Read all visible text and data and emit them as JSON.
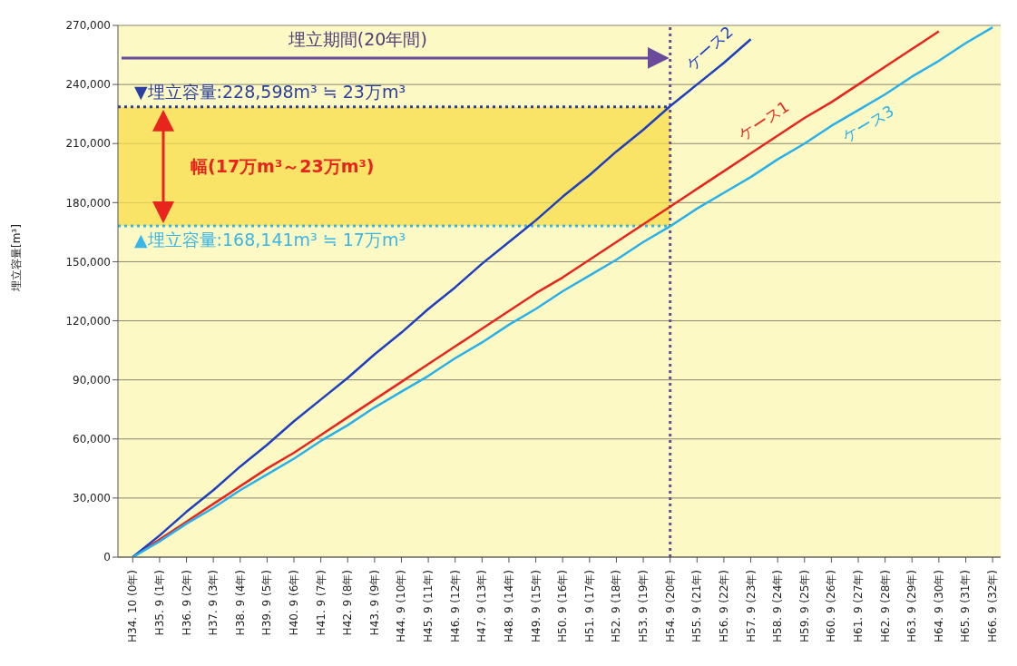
{
  "chart_data": {
    "type": "line",
    "ylabel": "埋立容量[m³]",
    "categories": [
      "H34. 10 (0年)",
      "H35. 9 (1年)",
      "H36. 9 (2年)",
      "H37. 9 (3年)",
      "H38. 9 (4年)",
      "H39. 9 (5年)",
      "H40. 9 (6年)",
      "H41. 9 (7年)",
      "H42. 9 (8年)",
      "H43. 9 (9年)",
      "H44. 9 (10年)",
      "H45. 9 (11年)",
      "H46. 9 (12年)",
      "H47. 9 (13年)",
      "H48. 9 (14年)",
      "H49. 9 (15年)",
      "H50. 9 (16年)",
      "H51. 9 (17年)",
      "H52. 9 (18年)",
      "H53. 9 (19年)",
      "H54. 9 (20年)",
      "H55. 9 (21年)",
      "H56. 9 (22年)",
      "H57. 9 (23年)",
      "H58. 9 (24年)",
      "H59. 9 (25年)",
      "H60. 9 (26年)",
      "H61. 9 (27年)",
      "H62. 9 (28年)",
      "H63. 9 (29年)",
      "H64. 9 (30年)",
      "H65. 9 (31年)",
      "H66. 9 (32年)"
    ],
    "series": [
      {
        "name": "ケース1",
        "color": "#e8251d",
        "values": [
          0,
          9000,
          18000,
          27000,
          36000,
          45000,
          53000,
          62000,
          71000,
          80000,
          89000,
          98000,
          107000,
          116000,
          125000,
          134000,
          142000,
          151000,
          160000,
          169000,
          178000,
          187000,
          196000,
          205000,
          214000,
          223000,
          231000,
          240000,
          249000,
          258000,
          267000,
          null,
          null
        ]
      },
      {
        "name": "ケース2",
        "color": "#1f3fbf",
        "values": [
          0,
          11000,
          23000,
          34000,
          46000,
          57000,
          69000,
          80000,
          91000,
          103000,
          114000,
          126000,
          137000,
          149000,
          160000,
          171000,
          183000,
          194000,
          206000,
          217000,
          229000,
          240000,
          251000,
          263000,
          null,
          null,
          null,
          null,
          null,
          null,
          null,
          null,
          null
        ]
      },
      {
        "name": "ケース3",
        "color": "#29b0ea",
        "values": [
          0,
          8000,
          17000,
          25000,
          34000,
          42000,
          50000,
          59000,
          67000,
          76000,
          84000,
          92000,
          101000,
          109000,
          118000,
          126000,
          135000,
          143000,
          151000,
          160000,
          168000,
          177000,
          185000,
          193000,
          202000,
          210000,
          219000,
          227000,
          235000,
          244000,
          252000,
          261000,
          269000
        ]
      }
    ],
    "ylim": [
      0,
      270000
    ],
    "yticks": [
      0,
      {
        "value": 30000,
        "label": "30,000"
      },
      {
        "value": 60000,
        "label": "60,000"
      },
      {
        "value": 90000,
        "label": "90,000"
      },
      {
        "value": 120000,
        "label": "120,000"
      },
      {
        "value": 150000,
        "label": "150,000"
      },
      {
        "value": 180000,
        "label": "180,000"
      },
      {
        "value": 210000,
        "label": "210,000"
      },
      {
        "value": 240000,
        "label": "240,000"
      },
      {
        "value": 270000,
        "label": "270,000"
      }
    ],
    "grid": "y",
    "legend": false,
    "marker": "none",
    "line_style": "solid",
    "ref_lines": [
      {
        "axis": "y",
        "value": 228598,
        "label": "▼埋立容量:228,598m³ ≒ 23万m³",
        "color": "#2a3fa0",
        "line_style": "dotted"
      },
      {
        "axis": "y",
        "value": 168141,
        "label": "▲埋立容量:168,141m³ ≒ 17万m³",
        "color": "#39b5e8",
        "line_style": "dotted"
      },
      {
        "axis": "x",
        "value": "H54. 9 (20年)",
        "color": "#6a4a9a",
        "line_style": "dotted"
      }
    ],
    "bands": [
      {
        "axis": "y",
        "from": 168141,
        "to": 228598,
        "color": "#f7dc4a"
      }
    ],
    "annotations": [
      "埋立期間(20年間)",
      "幅(17万m³～23万m³)"
    ]
  }
}
